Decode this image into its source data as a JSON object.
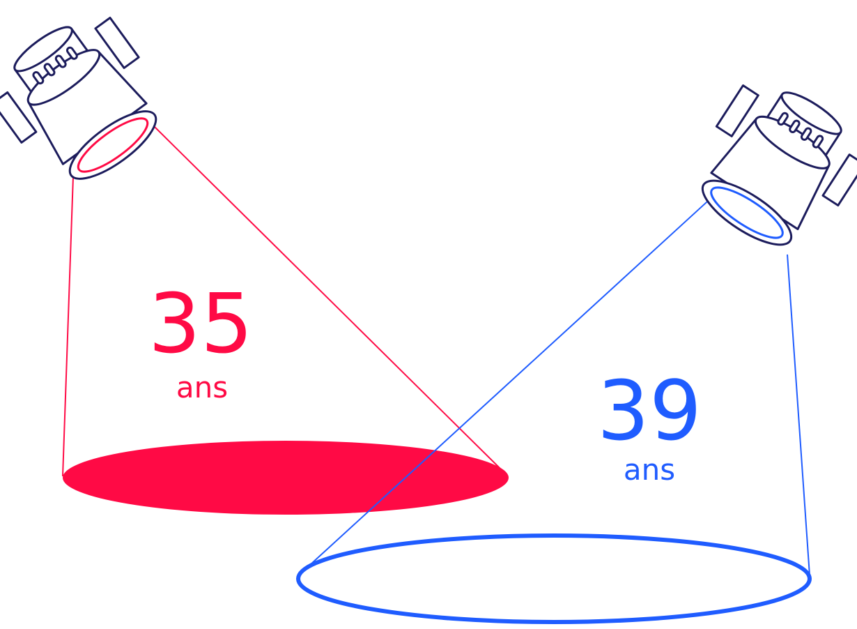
{
  "spotlights": [
    {
      "number": "35",
      "unit": "ans"
    },
    {
      "number": "39",
      "unit": "ans"
    }
  ]
}
